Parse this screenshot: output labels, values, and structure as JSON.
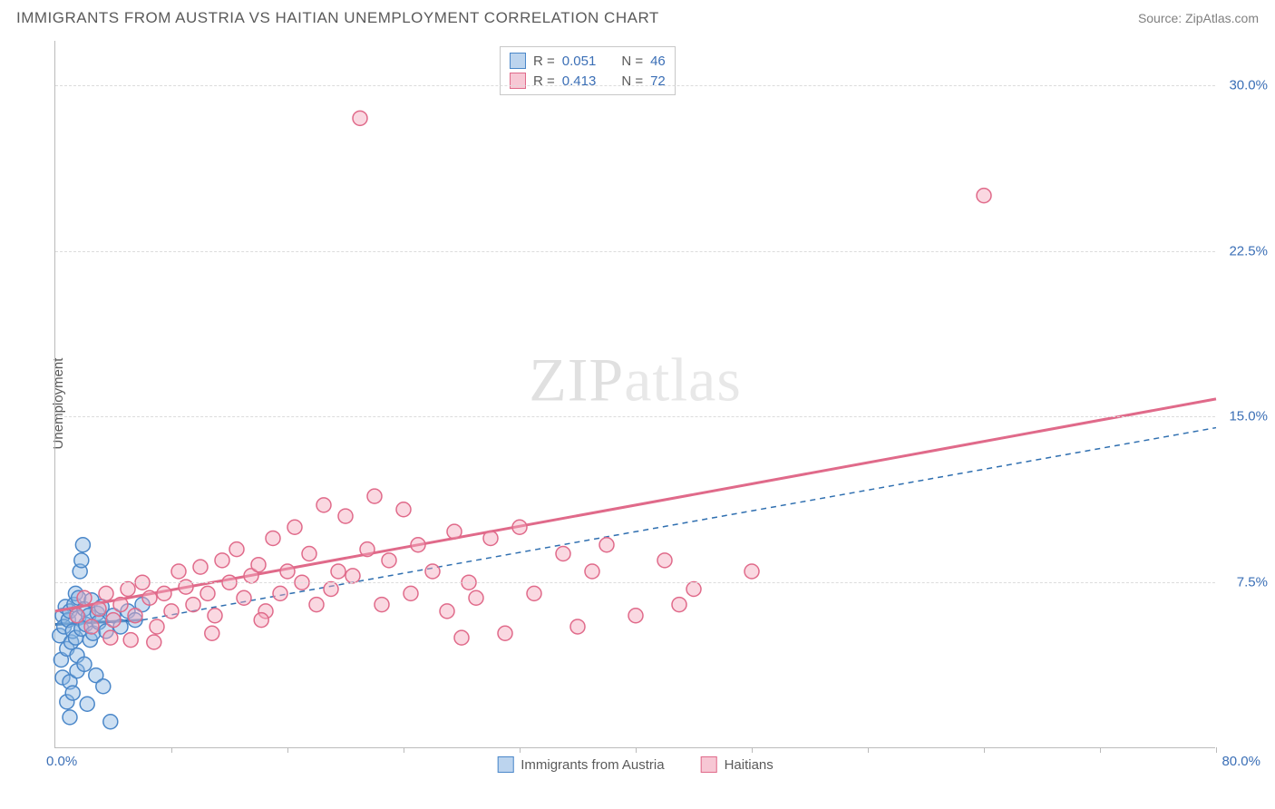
{
  "header": {
    "title": "IMMIGRANTS FROM AUSTRIA VS HAITIAN UNEMPLOYMENT CORRELATION CHART",
    "source_prefix": "Source: ",
    "source_name": "ZipAtlas.com"
  },
  "watermark": {
    "zip": "ZIP",
    "atlas": "atlas"
  },
  "chart": {
    "type": "scatter",
    "ylabel": "Unemployment",
    "xlim": [
      0,
      80
    ],
    "ylim": [
      0,
      32
    ],
    "x_origin_label": "0.0%",
    "x_max_label": "80.0%",
    "yticks": [
      7.5,
      15.0,
      22.5,
      30.0
    ],
    "ytick_labels": [
      "7.5%",
      "15.0%",
      "22.5%",
      "30.0%"
    ],
    "xticks": [
      8,
      16,
      24,
      32,
      40,
      48,
      56,
      64,
      72,
      80
    ],
    "grid_color": "#dcdcdc",
    "axis_color": "#bbbbbb",
    "background_color": "#ffffff",
    "marker_radius": 8,
    "marker_stroke_width": 1.5,
    "series": [
      {
        "name": "Immigrants from Austria",
        "fill": "#8fb7e3",
        "fill_opacity": 0.45,
        "stroke": "#4a87c9",
        "R": "0.051",
        "N": "46",
        "regression": {
          "x1": 0,
          "y1": 5.6,
          "x2": 6,
          "y2": 5.8,
          "stroke": "#2f6fb0",
          "width": 3,
          "dash": "none",
          "extend_dash": true,
          "ext_x2": 80,
          "ext_y2": 14.5,
          "ext_dash": "6 5",
          "ext_width": 1.5
        },
        "points": [
          [
            0.3,
            5.1
          ],
          [
            0.4,
            4.0
          ],
          [
            0.5,
            6.0
          ],
          [
            0.5,
            3.2
          ],
          [
            0.6,
            5.5
          ],
          [
            0.7,
            6.4
          ],
          [
            0.8,
            4.5
          ],
          [
            0.8,
            2.1
          ],
          [
            0.9,
            5.8
          ],
          [
            1.0,
            6.2
          ],
          [
            1.0,
            3.0
          ],
          [
            1.0,
            1.4
          ],
          [
            1.1,
            4.8
          ],
          [
            1.2,
            5.3
          ],
          [
            1.2,
            2.5
          ],
          [
            1.3,
            6.5
          ],
          [
            1.4,
            5.0
          ],
          [
            1.4,
            7.0
          ],
          [
            1.5,
            4.2
          ],
          [
            1.5,
            3.5
          ],
          [
            1.6,
            5.9
          ],
          [
            1.6,
            6.8
          ],
          [
            1.7,
            8.0
          ],
          [
            1.8,
            5.4
          ],
          [
            1.9,
            9.2
          ],
          [
            2.0,
            6.3
          ],
          [
            2.0,
            3.8
          ],
          [
            2.1,
            5.6
          ],
          [
            2.2,
            2.0
          ],
          [
            2.3,
            6.0
          ],
          [
            2.4,
            4.9
          ],
          [
            2.5,
            6.7
          ],
          [
            2.6,
            5.2
          ],
          [
            2.8,
            3.3
          ],
          [
            2.9,
            6.1
          ],
          [
            3.0,
            5.7
          ],
          [
            3.2,
            6.4
          ],
          [
            3.3,
            2.8
          ],
          [
            3.5,
            5.3
          ],
          [
            3.8,
            1.2
          ],
          [
            4.0,
            6.0
          ],
          [
            4.5,
            5.5
          ],
          [
            5.0,
            6.2
          ],
          [
            5.5,
            5.8
          ],
          [
            6.0,
            6.5
          ],
          [
            1.8,
            8.5
          ]
        ]
      },
      {
        "name": "Haitians",
        "fill": "#f4a8bd",
        "fill_opacity": 0.45,
        "stroke": "#e06a8a",
        "R": "0.413",
        "N": "72",
        "regression": {
          "x1": 0,
          "y1": 6.2,
          "x2": 80,
          "y2": 15.8,
          "stroke": "#e06a8a",
          "width": 3,
          "dash": "none"
        },
        "points": [
          [
            1.5,
            6.0
          ],
          [
            2.0,
            6.8
          ],
          [
            2.5,
            5.5
          ],
          [
            3.0,
            6.3
          ],
          [
            3.5,
            7.0
          ],
          [
            4.0,
            5.8
          ],
          [
            4.5,
            6.5
          ],
          [
            5.0,
            7.2
          ],
          [
            5.2,
            4.9
          ],
          [
            5.5,
            6.0
          ],
          [
            6.0,
            7.5
          ],
          [
            6.5,
            6.8
          ],
          [
            7.0,
            5.5
          ],
          [
            7.5,
            7.0
          ],
          [
            8.0,
            6.2
          ],
          [
            8.5,
            8.0
          ],
          [
            9.0,
            7.3
          ],
          [
            9.5,
            6.5
          ],
          [
            10.0,
            8.2
          ],
          [
            10.5,
            7.0
          ],
          [
            11.0,
            6.0
          ],
          [
            11.5,
            8.5
          ],
          [
            12.0,
            7.5
          ],
          [
            12.5,
            9.0
          ],
          [
            13.0,
            6.8
          ],
          [
            13.5,
            7.8
          ],
          [
            14.0,
            8.3
          ],
          [
            14.5,
            6.2
          ],
          [
            15.0,
            9.5
          ],
          [
            15.5,
            7.0
          ],
          [
            16.0,
            8.0
          ],
          [
            16.5,
            10.0
          ],
          [
            17.0,
            7.5
          ],
          [
            17.5,
            8.8
          ],
          [
            18.0,
            6.5
          ],
          [
            18.5,
            11.0
          ],
          [
            19.0,
            7.2
          ],
          [
            19.5,
            8.0
          ],
          [
            20.0,
            10.5
          ],
          [
            20.5,
            7.8
          ],
          [
            21.0,
            28.5
          ],
          [
            21.5,
            9.0
          ],
          [
            22.0,
            11.4
          ],
          [
            22.5,
            6.5
          ],
          [
            23.0,
            8.5
          ],
          [
            24.0,
            10.8
          ],
          [
            24.5,
            7.0
          ],
          [
            25.0,
            9.2
          ],
          [
            26.0,
            8.0
          ],
          [
            27.0,
            6.2
          ],
          [
            27.5,
            9.8
          ],
          [
            28.0,
            5.0
          ],
          [
            28.5,
            7.5
          ],
          [
            29.0,
            6.8
          ],
          [
            30.0,
            9.5
          ],
          [
            31.0,
            5.2
          ],
          [
            32.0,
            10.0
          ],
          [
            33.0,
            7.0
          ],
          [
            35.0,
            8.8
          ],
          [
            36.0,
            5.5
          ],
          [
            37.0,
            8.0
          ],
          [
            38.0,
            9.2
          ],
          [
            40.0,
            6.0
          ],
          [
            42.0,
            8.5
          ],
          [
            43.0,
            6.5
          ],
          [
            44.0,
            7.2
          ],
          [
            48.0,
            8.0
          ],
          [
            64.0,
            25.0
          ],
          [
            3.8,
            5.0
          ],
          [
            6.8,
            4.8
          ],
          [
            10.8,
            5.2
          ],
          [
            14.2,
            5.8
          ]
        ]
      }
    ],
    "legend_top": {
      "border_color": "#c8c8c8",
      "rows": [
        {
          "swatch_fill": "#bcd4ee",
          "swatch_stroke": "#4a87c9",
          "R_label": "R =",
          "R_val": "0.051",
          "N_label": "N =",
          "N_val": "46"
        },
        {
          "swatch_fill": "#f7c7d4",
          "swatch_stroke": "#e06a8a",
          "R_label": "R =",
          "R_val": "0.413",
          "N_label": "N =",
          "N_val": "72"
        }
      ]
    },
    "legend_bottom": [
      {
        "swatch_fill": "#bcd4ee",
        "swatch_stroke": "#4a87c9",
        "label": "Immigrants from Austria"
      },
      {
        "swatch_fill": "#f7c7d4",
        "swatch_stroke": "#e06a8a",
        "label": "Haitians"
      }
    ]
  }
}
